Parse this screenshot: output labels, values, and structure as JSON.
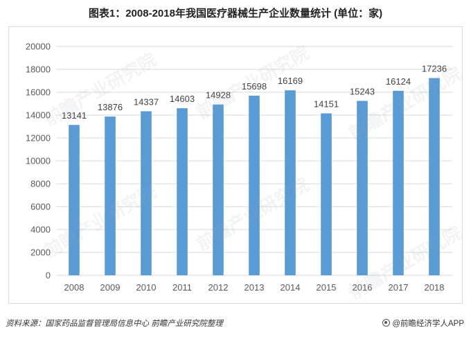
{
  "title": "图表1：2008-2018年我国医疗器械生产企业数量统计 (单位：家)",
  "source": "资料来源：国家药品监督管理局信息中心 前瞻产业研究院整理",
  "brand": "@前瞻经济学人APP",
  "watermark": "前瞻产业研究院",
  "colors": {
    "bar": "#5b9bd5",
    "grid": "#d9d9d9",
    "text": "#595959"
  },
  "chart_data": {
    "type": "bar",
    "categories": [
      "2008",
      "2009",
      "2010",
      "2011",
      "2012",
      "2013",
      "2014",
      "2015",
      "2016",
      "2017",
      "2018"
    ],
    "values": [
      13141,
      13876,
      14337,
      14603,
      14928,
      15698,
      16169,
      14151,
      15243,
      16124,
      17236
    ],
    "ylim": [
      0,
      20000
    ],
    "yticks": [
      0,
      2000,
      4000,
      6000,
      8000,
      10000,
      12000,
      14000,
      16000,
      18000,
      20000
    ],
    "grid": true,
    "data_labels": true,
    "legend": "none"
  }
}
